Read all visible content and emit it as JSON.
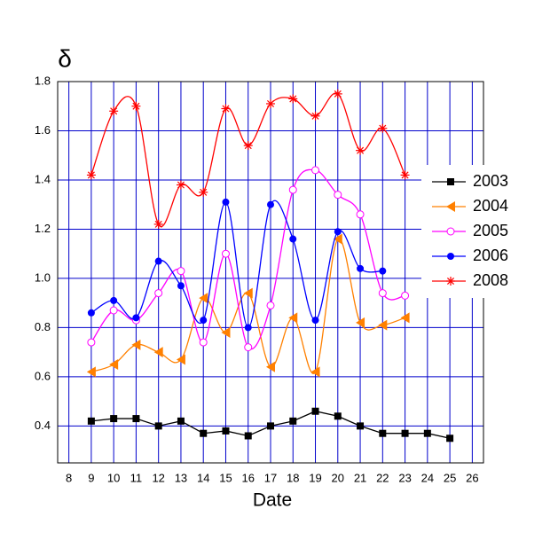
{
  "chart_data": {
    "type": "line",
    "y_label": "δ",
    "x_label": "Date",
    "xlim": [
      7.5,
      26.5
    ],
    "xticks": [
      8,
      9,
      10,
      11,
      12,
      13,
      14,
      15,
      16,
      17,
      18,
      19,
      20,
      21,
      22,
      23,
      24,
      25,
      26
    ],
    "ylim": [
      0.25,
      1.8
    ],
    "yticks": [
      0.4,
      0.6,
      0.8,
      {
        "value": 1,
        "label": "1.0"
      },
      1.2,
      1.4,
      1.6,
      1.8
    ],
    "grid": true,
    "grid_color": "#0000cc",
    "legend": "right",
    "series": [
      {
        "name": "2003",
        "color": "#000000",
        "marker": "square",
        "x": [
          9,
          10,
          11,
          12,
          13,
          14,
          15,
          16,
          17,
          18,
          19,
          20,
          21,
          22,
          23,
          24,
          25
        ],
        "values": [
          0.42,
          0.43,
          0.43,
          0.4,
          0.42,
          0.37,
          0.38,
          0.36,
          0.4,
          0.42,
          0.46,
          0.44,
          0.4,
          0.37,
          0.37,
          0.37,
          0.35
        ]
      },
      {
        "name": "2004",
        "color": "#ff8000",
        "marker": "triangle-left",
        "x": [
          9,
          10,
          11,
          12,
          13,
          14,
          15,
          16,
          17,
          18,
          19,
          20,
          21,
          22,
          23
        ],
        "values": [
          0.62,
          0.65,
          0.73,
          0.7,
          0.67,
          0.92,
          0.78,
          0.94,
          0.64,
          0.84,
          0.62,
          1.16,
          0.82,
          0.81,
          0.84
        ]
      },
      {
        "name": "2005",
        "color": "#ff00ff",
        "marker": "open-circle",
        "x": [
          9,
          10,
          11,
          12,
          13,
          14,
          15,
          16,
          17,
          18,
          19,
          20,
          21,
          22,
          23
        ],
        "values": [
          0.74,
          0.87,
          0.83,
          0.94,
          1.03,
          0.74,
          1.1,
          0.72,
          0.89,
          1.36,
          1.44,
          1.34,
          1.26,
          0.94,
          0.93
        ]
      },
      {
        "name": "2006",
        "color": "#0000ff",
        "marker": "circle",
        "x": [
          9,
          10,
          11,
          12,
          13,
          14,
          15,
          16,
          17,
          18,
          19,
          20,
          21,
          22
        ],
        "values": [
          0.86,
          0.91,
          0.84,
          1.07,
          0.97,
          0.83,
          1.31,
          0.8,
          1.3,
          1.16,
          0.83,
          1.19,
          1.04,
          1.03
        ]
      },
      {
        "name": "2008",
        "color": "#ff0000",
        "marker": "asterisk",
        "x": [
          9,
          10,
          11,
          12,
          13,
          14,
          15,
          16,
          17,
          18,
          19,
          20,
          21,
          22,
          23
        ],
        "values": [
          1.42,
          1.68,
          1.7,
          1.22,
          1.38,
          1.35,
          1.69,
          1.54,
          1.71,
          1.73,
          1.66,
          1.75,
          1.52,
          1.61,
          1.42
        ]
      }
    ]
  }
}
